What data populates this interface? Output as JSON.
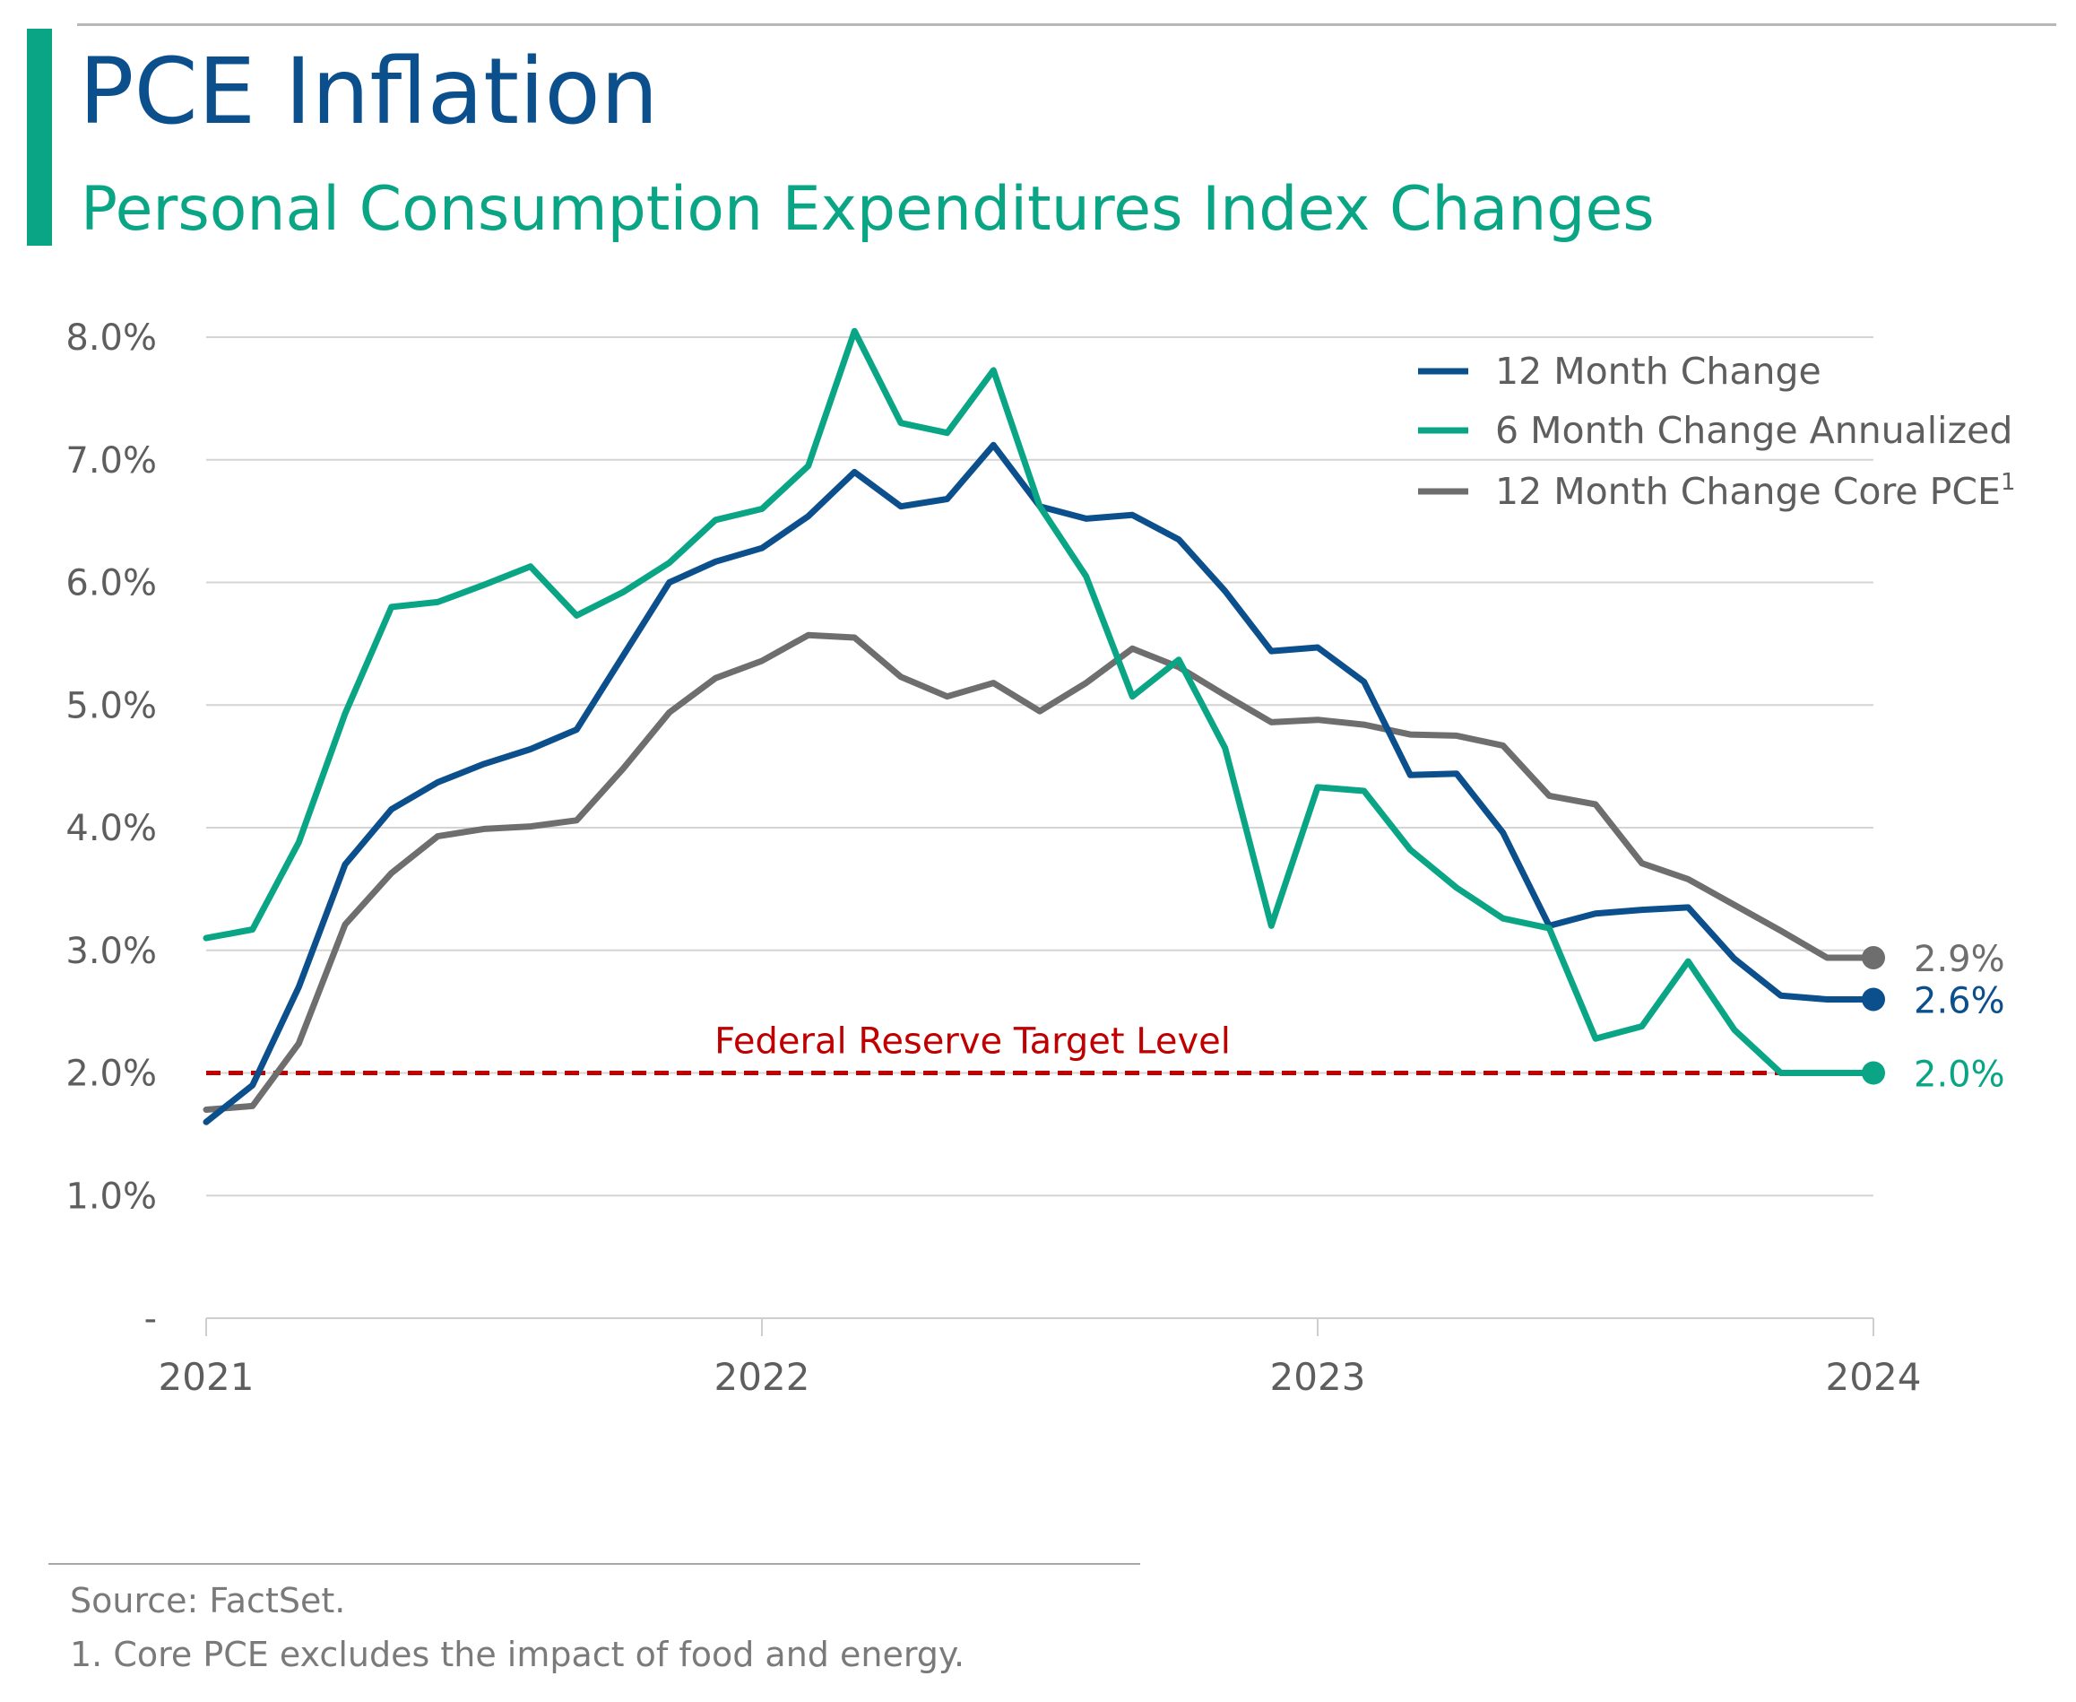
{
  "header": {
    "title": "PCE Inflation",
    "subtitle": "Personal Consumption Expenditures Index Changes"
  },
  "footer": {
    "source": "Source: FactSet.",
    "note": "1. Core PCE excludes the impact of food and energy."
  },
  "colors": {
    "accent": "#0aa585",
    "title": "#0b4f8d",
    "series_12m": "#0b4f8d",
    "series_6m": "#0aa585",
    "series_core": "#6e6e6e",
    "reference": "#c00000"
  },
  "chart_data": {
    "type": "line",
    "title": "",
    "xlabel": "",
    "ylabel": "",
    "ylim": [
      0,
      8
    ],
    "yticks": [
      {
        "value": 0,
        "label": "-"
      },
      {
        "value": 1,
        "label": "1.0%"
      },
      {
        "value": 2,
        "label": "2.0%"
      },
      {
        "value": 3,
        "label": "3.0%"
      },
      {
        "value": 4,
        "label": "4.0%"
      },
      {
        "value": 5,
        "label": "5.0%"
      },
      {
        "value": 6,
        "label": "6.0%"
      },
      {
        "value": 7,
        "label": "7.0%"
      },
      {
        "value": 8,
        "label": "8.0%"
      }
    ],
    "xticks": [
      "2021",
      "2022",
      "2023",
      "2024"
    ],
    "x": [
      "2021-01",
      "2021-02",
      "2021-03",
      "2021-04",
      "2021-05",
      "2021-06",
      "2021-07",
      "2021-08",
      "2021-09",
      "2021-10",
      "2021-11",
      "2021-12",
      "2022-01",
      "2022-02",
      "2022-03",
      "2022-04",
      "2022-05",
      "2022-06",
      "2022-07",
      "2022-08",
      "2022-09",
      "2022-10",
      "2022-11",
      "2022-12",
      "2023-01",
      "2023-02",
      "2023-03",
      "2023-04",
      "2023-05",
      "2023-06",
      "2023-07",
      "2023-08",
      "2023-09",
      "2023-10",
      "2023-11",
      "2023-12",
      "2024-01"
    ],
    "grid": true,
    "legend_position": "top-right",
    "series": [
      {
        "name": "12 Month Change",
        "color": "#0b4f8d",
        "end_label": "2.6%",
        "values": [
          1.6,
          1.9,
          2.7,
          3.7,
          4.15,
          4.37,
          4.52,
          4.64,
          4.8,
          5.4,
          6.0,
          6.17,
          6.28,
          6.54,
          6.9,
          6.62,
          6.68,
          7.12,
          6.62,
          6.52,
          6.55,
          6.35,
          5.93,
          5.44,
          5.47,
          5.19,
          4.43,
          4.44,
          3.96,
          3.2,
          3.3,
          3.33,
          3.35,
          2.93,
          2.63,
          2.6,
          2.6
        ]
      },
      {
        "name": "6 Month Change Annualized",
        "color": "#0aa585",
        "end_label": "2.0%",
        "values": [
          3.1,
          3.17,
          3.88,
          4.93,
          5.8,
          5.84,
          5.98,
          6.13,
          5.73,
          5.92,
          6.16,
          6.51,
          6.6,
          6.95,
          8.05,
          7.3,
          7.22,
          7.73,
          6.62,
          6.05,
          5.07,
          5.37,
          4.65,
          3.2,
          4.33,
          4.3,
          3.82,
          3.51,
          3.26,
          3.18,
          2.28,
          2.38,
          2.91,
          2.35,
          2.0,
          2.0,
          2.0
        ]
      },
      {
        "name": "12 Month Change Core PCE",
        "superscript": "1",
        "color": "#6e6e6e",
        "end_label": "2.9%",
        "values": [
          1.7,
          1.73,
          2.24,
          3.21,
          3.63,
          3.93,
          3.99,
          4.01,
          4.06,
          4.48,
          4.94,
          5.22,
          5.36,
          5.57,
          5.55,
          5.23,
          5.07,
          5.18,
          4.95,
          5.18,
          5.46,
          5.31,
          5.08,
          4.86,
          4.88,
          4.84,
          4.76,
          4.75,
          4.67,
          4.26,
          4.19,
          3.71,
          3.58,
          3.37,
          3.16,
          2.94,
          2.94
        ]
      }
    ],
    "reference_lines": [
      {
        "value": 2.0,
        "label": "Federal Reserve Target Level",
        "color": "#c00000",
        "style": "dashed"
      }
    ]
  }
}
